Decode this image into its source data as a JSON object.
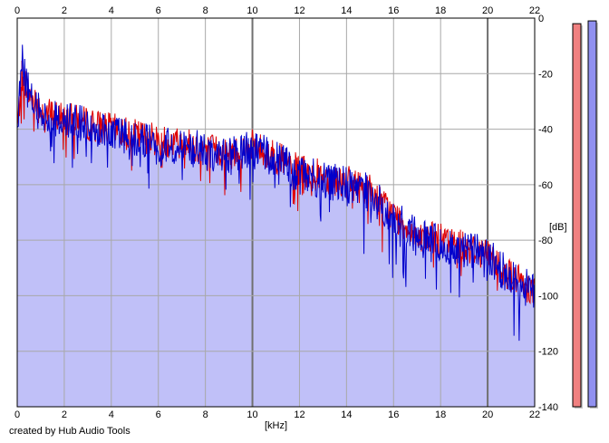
{
  "footer_text": "created by Hub Audio Tools",
  "chart_data": {
    "type": "area",
    "xlabel": "[kHz]",
    "ylabel": "[dB]",
    "xlim": [
      0,
      22
    ],
    "ylim": [
      -140,
      0
    ],
    "x_ticks": [
      "0",
      "2",
      "4",
      "6",
      "8",
      "10",
      "12",
      "14",
      "16",
      "18",
      "20",
      "22"
    ],
    "y_ticks": [
      "0",
      "-20",
      "-40",
      "-60",
      "-80",
      "-100",
      "-120",
      "-140"
    ],
    "grid": true,
    "colors": {
      "left": "#e00000",
      "right": "#0000cc",
      "fill": "#c0c0f8",
      "meter_left": "#f08080",
      "meter_right": "#9090f0"
    },
    "series": [
      {
        "channel": "left",
        "x": [
          0,
          0.2,
          0.5,
          1,
          1.5,
          2,
          3,
          4,
          5,
          6,
          7,
          8,
          9,
          10,
          11,
          12,
          13,
          14,
          15,
          16,
          17,
          18,
          19,
          20,
          21,
          22
        ],
        "values": [
          -40,
          -20,
          -27,
          -33,
          -35,
          -36,
          -38,
          -40,
          -42,
          -44,
          -45,
          -47,
          -49,
          -46,
          -50,
          -55,
          -57,
          -59,
          -62,
          -71,
          -78,
          -80,
          -82,
          -85,
          -93,
          -98
        ]
      },
      {
        "channel": "right",
        "x": [
          0,
          0.2,
          0.5,
          1,
          1.5,
          2,
          3,
          4,
          5,
          6,
          7,
          8,
          9,
          10,
          11,
          12,
          13,
          14,
          15,
          16,
          17,
          18,
          19,
          20,
          21,
          22
        ],
        "values": [
          -42,
          -15,
          -28,
          -35,
          -36,
          -37,
          -39,
          -41,
          -43,
          -46,
          -46,
          -48,
          -50,
          -47,
          -51,
          -56,
          -58,
          -60,
          -63,
          -72,
          -79,
          -81,
          -83,
          -86,
          -94,
          -99
        ]
      }
    ],
    "level_meters": [
      {
        "channel": "left",
        "value_db": -2
      },
      {
        "channel": "right",
        "value_db": -1
      }
    ]
  }
}
